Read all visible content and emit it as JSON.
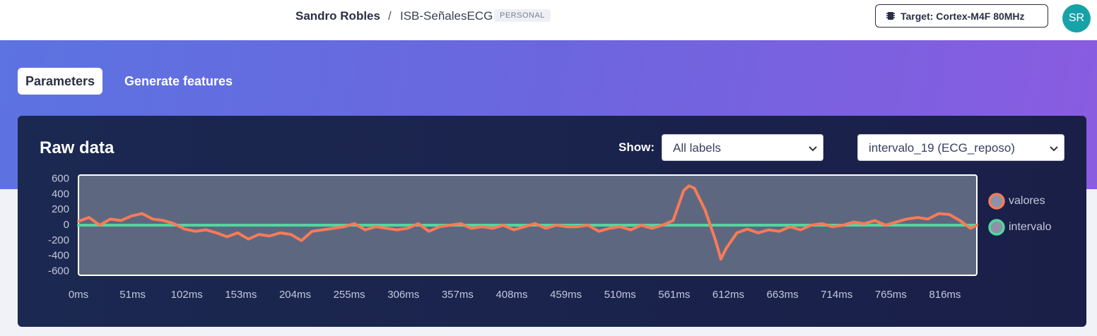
{
  "header": {
    "user": "Sandro Robles",
    "separator": "/",
    "project": "ISB-SeñalesECG",
    "badge": "PERSONAL",
    "target": "Target: Cortex-M4F 80MHz",
    "avatar": "SR"
  },
  "tabs": [
    "Parameters",
    "Generate features"
  ],
  "card": {
    "title": "Raw data",
    "show_label": "Show:",
    "label_filter": "All labels",
    "sample": "intervalo_19 (ECG_reposo)"
  },
  "chart_data": {
    "type": "line",
    "x": [
      0,
      10,
      20,
      30,
      40,
      50,
      60,
      70,
      80,
      90,
      100,
      110,
      120,
      130,
      140,
      150,
      160,
      170,
      180,
      190,
      200,
      210,
      220,
      230,
      240,
      250,
      260,
      270,
      280,
      290,
      300,
      310,
      320,
      330,
      340,
      350,
      360,
      370,
      380,
      390,
      400,
      410,
      420,
      430,
      440,
      450,
      460,
      470,
      480,
      490,
      500,
      510,
      520,
      530,
      540,
      550,
      560,
      570,
      575,
      580,
      590,
      600,
      605,
      610,
      620,
      630,
      640,
      650,
      660,
      670,
      680,
      690,
      700,
      710,
      720,
      730,
      740,
      750,
      760,
      770,
      780,
      790,
      800,
      810,
      820,
      830,
      840,
      846
    ],
    "series": [
      {
        "name": "valores",
        "color": "#fa7a57",
        "values": [
          50,
          100,
          0,
          80,
          60,
          120,
          150,
          80,
          60,
          20,
          -50,
          -80,
          -60,
          -100,
          -150,
          -100,
          -180,
          -120,
          -140,
          -100,
          -120,
          -200,
          -80,
          -60,
          -40,
          -20,
          20,
          -60,
          -20,
          -40,
          -60,
          -40,
          20,
          -80,
          -20,
          0,
          20,
          -40,
          -20,
          -40,
          0,
          -60,
          -20,
          20,
          -40,
          0,
          -20,
          -20,
          0,
          -80,
          -40,
          -20,
          -60,
          0,
          -40,
          0,
          60,
          450,
          510,
          480,
          200,
          -200,
          -440,
          -300,
          -100,
          -50,
          -100,
          -60,
          -80,
          -20,
          -60,
          0,
          20,
          -20,
          0,
          40,
          20,
          60,
          0,
          40,
          80,
          100,
          80,
          150,
          140,
          60,
          -40,
          0
        ]
      },
      {
        "name": "intervalo",
        "color": "#52d6a0",
        "values": [
          0,
          0,
          0,
          0,
          0,
          0,
          0,
          0,
          0,
          0,
          0,
          0,
          0,
          0,
          0,
          0,
          0,
          0,
          0,
          0,
          0,
          0,
          0,
          0,
          0,
          0,
          0,
          0,
          0,
          0,
          0,
          0,
          0,
          0,
          0,
          0,
          0,
          0,
          0,
          0,
          0,
          0,
          0,
          0,
          0,
          0,
          0,
          0,
          0,
          0,
          0,
          0,
          0,
          0,
          0,
          0,
          0,
          0,
          0,
          0,
          0,
          0,
          0,
          0,
          0,
          0,
          0,
          0,
          0,
          0,
          0,
          0,
          0,
          0,
          0,
          0,
          0,
          0,
          0,
          0,
          0,
          0,
          0,
          0,
          0,
          0,
          0,
          0
        ]
      }
    ],
    "xlim": [
      0,
      846
    ],
    "xticks": [
      {
        "value": 0,
        "label": "0ms"
      },
      {
        "value": 51,
        "label": "51ms"
      },
      {
        "value": 102,
        "label": "102ms"
      },
      {
        "value": 153,
        "label": "153ms"
      },
      {
        "value": 204,
        "label": "204ms"
      },
      {
        "value": 255,
        "label": "255ms"
      },
      {
        "value": 306,
        "label": "306ms"
      },
      {
        "value": 357,
        "label": "357ms"
      },
      {
        "value": 408,
        "label": "408ms"
      },
      {
        "value": 459,
        "label": "459ms"
      },
      {
        "value": 510,
        "label": "510ms"
      },
      {
        "value": 561,
        "label": "561ms"
      },
      {
        "value": 612,
        "label": "612ms"
      },
      {
        "value": 663,
        "label": "663ms"
      },
      {
        "value": 714,
        "label": "714ms"
      },
      {
        "value": 765,
        "label": "765ms"
      },
      {
        "value": 816,
        "label": "816ms"
      }
    ],
    "ylim": [
      -650,
      650
    ],
    "yticks": [
      600,
      400,
      200,
      0,
      -200,
      -400,
      -600
    ]
  }
}
